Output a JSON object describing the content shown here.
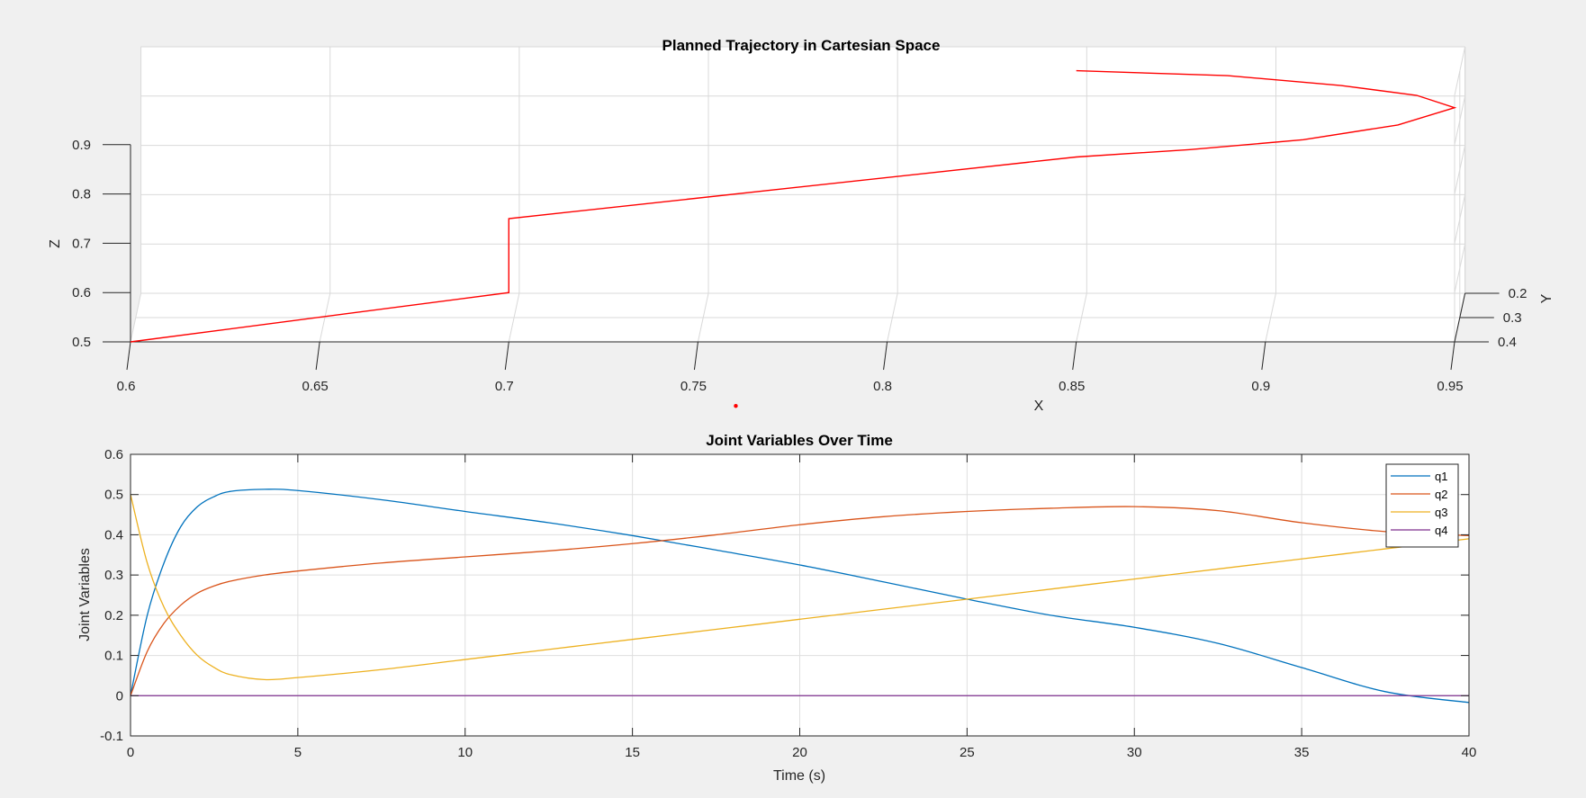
{
  "figure": {
    "background": "#f0f0f0"
  },
  "chart_data": [
    {
      "type": "line",
      "projection": "3d",
      "title": "Planned Trajectory in Cartesian Space",
      "xlabel": "X",
      "ylabel": "Y",
      "zlabel": "Z",
      "xlim": [
        0.6,
        0.95
      ],
      "ylim": [
        0.2,
        0.4
      ],
      "zlim": [
        0.5,
        1.0
      ],
      "xticks": [
        0.6,
        0.65,
        0.7,
        0.75,
        0.8,
        0.85,
        0.9,
        0.95
      ],
      "xtick_labels": [
        "0.6",
        "0.65",
        "0.7",
        "0.75",
        "0.8",
        "0.85",
        "0.9",
        "0.95"
      ],
      "yticks": [
        0.2,
        0.3,
        0.4
      ],
      "ytick_labels": [
        "0.2",
        "0.3",
        "0.4"
      ],
      "zticks": [
        0.5,
        0.6,
        0.7,
        0.8,
        0.9
      ],
      "ztick_labels": [
        "0.5",
        "0.6",
        "0.7",
        "0.8",
        "0.9"
      ],
      "grid": true,
      "color": "#ff0000",
      "path": [
        {
          "x": 0.6,
          "y": 0.4,
          "z": 0.5
        },
        {
          "x": 0.7,
          "y": 0.4,
          "z": 0.6
        },
        {
          "x": 0.7,
          "y": 0.4,
          "z": 0.75
        },
        {
          "x": 0.85,
          "y": 0.4,
          "z": 0.875
        },
        {
          "x": 0.88,
          "y": 0.4,
          "z": 0.89
        },
        {
          "x": 0.91,
          "y": 0.4,
          "z": 0.91
        },
        {
          "x": 0.935,
          "y": 0.4,
          "z": 0.94
        },
        {
          "x": 0.95,
          "y": 0.4,
          "z": 0.975
        },
        {
          "x": 0.94,
          "y": 0.4,
          "z": 1.0
        },
        {
          "x": 0.92,
          "y": 0.4,
          "z": 1.02
        },
        {
          "x": 0.89,
          "y": 0.4,
          "z": 1.04
        },
        {
          "x": 0.85,
          "y": 0.4,
          "z": 1.05
        }
      ],
      "extra_marker": {
        "x": 0.76,
        "y": 0.4,
        "z": 0.37
      }
    },
    {
      "type": "line",
      "title": "Joint Variables Over Time",
      "xlabel": "Time (s)",
      "ylabel": "Joint Variables",
      "xlim": [
        0,
        40
      ],
      "ylim": [
        -0.1,
        0.6
      ],
      "xticks": [
        0,
        5,
        10,
        15,
        20,
        25,
        30,
        35,
        40
      ],
      "xtick_labels": [
        "0",
        "5",
        "10",
        "15",
        "20",
        "25",
        "30",
        "35",
        "40"
      ],
      "yticks": [
        -0.1,
        0,
        0.1,
        0.2,
        0.3,
        0.4,
        0.5,
        0.6
      ],
      "ytick_labels": [
        "-0.1",
        "0",
        "0.1",
        "0.2",
        "0.3",
        "0.4",
        "0.5",
        "0.6"
      ],
      "grid": true,
      "legend": "top-right",
      "x": [
        0,
        0.5,
        1,
        1.5,
        2,
        2.5,
        3,
        4,
        5,
        7.5,
        10,
        12.5,
        15,
        17.5,
        20,
        22.5,
        25,
        27.5,
        30,
        32.5,
        35,
        37.5,
        40
      ],
      "series": [
        {
          "name": "q1",
          "color": "#0072bd",
          "values": [
            0,
            0.2,
            0.33,
            0.42,
            0.47,
            0.495,
            0.508,
            0.513,
            0.51,
            0.487,
            0.458,
            0.43,
            0.398,
            0.362,
            0.325,
            0.283,
            0.24,
            0.2,
            0.17,
            0.13,
            0.07,
            0.01,
            -0.017
          ]
        },
        {
          "name": "q2",
          "color": "#d95319",
          "values": [
            0,
            0.11,
            0.18,
            0.225,
            0.255,
            0.273,
            0.285,
            0.3,
            0.31,
            0.33,
            0.345,
            0.36,
            0.378,
            0.4,
            0.425,
            0.445,
            0.458,
            0.466,
            0.47,
            0.46,
            0.43,
            0.408,
            0.398
          ]
        },
        {
          "name": "q3",
          "color": "#edb120",
          "values": [
            0.5,
            0.33,
            0.22,
            0.15,
            0.1,
            0.07,
            0.052,
            0.04,
            0.045,
            0.065,
            0.09,
            0.115,
            0.14,
            0.165,
            0.19,
            0.215,
            0.24,
            0.265,
            0.29,
            0.315,
            0.34,
            0.365,
            0.39
          ]
        },
        {
          "name": "q4",
          "color": "#7e2f8e",
          "values": [
            0,
            0,
            0,
            0,
            0,
            0,
            0,
            0,
            0,
            0,
            0,
            0,
            0,
            0,
            0,
            0,
            0,
            0,
            0,
            0,
            0,
            0,
            0
          ]
        }
      ]
    }
  ]
}
